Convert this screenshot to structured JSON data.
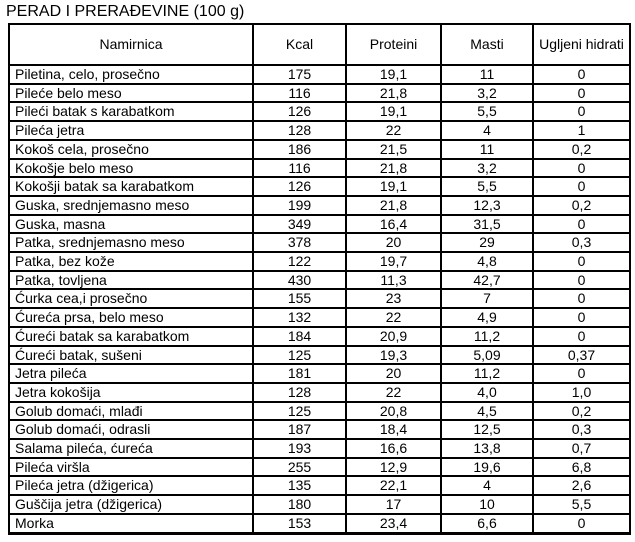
{
  "title": "PERAD I PRERAĐEVINE (100 g)",
  "table": {
    "columns": [
      "Namirnica",
      "Kcal",
      "Proteini",
      "Masti",
      "Ugljeni hidrati"
    ],
    "rows": [
      [
        "Piletina, celo, prosečno",
        "175",
        "19,1",
        "11",
        "0"
      ],
      [
        "Pileće belo meso",
        "116",
        "21,8",
        "3,2",
        "0"
      ],
      [
        "Pileći batak s karabatkom",
        "126",
        "19,1",
        "5,5",
        "0"
      ],
      [
        "Pileća jetra",
        "128",
        "22",
        "4",
        "1"
      ],
      [
        "Kokoš cela, prosečno",
        "186",
        "21,5",
        "11",
        "0,2"
      ],
      [
        "Kokošje belo meso",
        "116",
        "21,8",
        "3,2",
        "0"
      ],
      [
        "Kokošji batak sa karabatkom",
        "126",
        "19,1",
        "5,5",
        "0"
      ],
      [
        "Guska, srednjemasno meso",
        "199",
        "21,8",
        "12,3",
        "0,2"
      ],
      [
        "Guska, masna",
        "349",
        "16,4",
        "31,5",
        "0"
      ],
      [
        "Patka, srednjemasno meso",
        "378",
        "20",
        "29",
        "0,3"
      ],
      [
        "Patka, bez kože",
        "122",
        "19,7",
        "4,8",
        "0"
      ],
      [
        "Patka, tovljena",
        "430",
        "11,3",
        "42,7",
        "0"
      ],
      [
        "Ćurka cea,i prosečno",
        "155",
        "23",
        "7",
        "0"
      ],
      [
        "Ćureća prsa, belo meso",
        "132",
        "22",
        "4,9",
        "0"
      ],
      [
        "Ćureći batak sa karabatkom",
        "184",
        "20,9",
        "11,2",
        "0"
      ],
      [
        "Ćureći batak, sušeni",
        "125",
        "19,3",
        "5,09",
        "0,37"
      ],
      [
        "Jetra pileća",
        "181",
        "20",
        "11,2",
        "0"
      ],
      [
        "Jetra kokošija",
        "128",
        "22",
        "4,0",
        "1,0"
      ],
      [
        "Golub domaći, mlađi",
        "125",
        "20,8",
        "4,5",
        "0,2"
      ],
      [
        "Golub domaći, odrasli",
        "187",
        "18,4",
        "12,5",
        "0,3"
      ],
      [
        "Salama pileća, ćureća",
        "193",
        "16,6",
        "13,8",
        "0,7"
      ],
      [
        "Pileća viršla",
        "255",
        "12,9",
        "19,6",
        "6,8"
      ],
      [
        "Pileća jetra (džigerica)",
        "135",
        "22,1",
        "4",
        "2,6"
      ],
      [
        "Guščija jetra (džigerica)",
        "180",
        "17",
        "10",
        "5,5"
      ],
      [
        "Morka",
        "153",
        "23,4",
        "6,6",
        "0"
      ]
    ]
  }
}
